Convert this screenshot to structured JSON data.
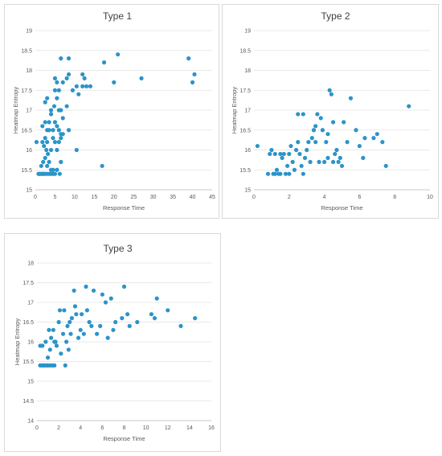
{
  "chart_data": [
    {
      "type": "scatter",
      "title": "Type 1",
      "xlabel": "Response Time",
      "ylabel": "Heatmap Entropy",
      "xlim": [
        0,
        45
      ],
      "ylim": [
        15,
        19
      ],
      "xticks": [
        "0",
        "5",
        "10",
        "15",
        "20",
        "25",
        "30",
        "35",
        "40",
        "45"
      ],
      "yticks": [
        "15",
        "15.5",
        "16",
        "16.5",
        "17",
        "17.5",
        "18",
        "18.5",
        "19"
      ],
      "grid": true,
      "color": "#2b94c9",
      "points": [
        [
          0.3,
          16.2
        ],
        [
          0.8,
          15.4
        ],
        [
          1.0,
          15.4
        ],
        [
          1.2,
          15.4
        ],
        [
          1.5,
          15.4
        ],
        [
          1.8,
          15.4
        ],
        [
          2.0,
          15.4
        ],
        [
          2.2,
          15.4
        ],
        [
          2.5,
          15.4
        ],
        [
          3.0,
          15.4
        ],
        [
          3.5,
          15.4
        ],
        [
          4.0,
          15.4
        ],
        [
          4.5,
          15.4
        ],
        [
          5.0,
          15.4
        ],
        [
          6.2,
          15.4
        ],
        [
          1.5,
          15.6
        ],
        [
          2.0,
          15.7
        ],
        [
          2.5,
          15.8
        ],
        [
          3.0,
          15.6
        ],
        [
          3.2,
          15.9
        ],
        [
          2.8,
          16.0
        ],
        [
          3.5,
          15.7
        ],
        [
          4.0,
          15.5
        ],
        [
          4.5,
          15.5
        ],
        [
          5.5,
          15.5
        ],
        [
          6.5,
          15.7
        ],
        [
          1.8,
          16.2
        ],
        [
          2.2,
          16.1
        ],
        [
          2.5,
          16.3
        ],
        [
          3.0,
          16.2
        ],
        [
          3.5,
          16.5
        ],
        [
          4.0,
          16.0
        ],
        [
          4.5,
          16.3
        ],
        [
          5.0,
          16.2
        ],
        [
          5.5,
          16.0
        ],
        [
          6.0,
          16.2
        ],
        [
          6.5,
          16.3
        ],
        [
          1.8,
          16.6
        ],
        [
          2.5,
          16.7
        ],
        [
          3.0,
          16.5
        ],
        [
          3.5,
          16.7
        ],
        [
          4.0,
          16.9
        ],
        [
          4.5,
          16.5
        ],
        [
          5.0,
          16.7
        ],
        [
          5.5,
          16.6
        ],
        [
          6.0,
          16.5
        ],
        [
          6.5,
          16.4
        ],
        [
          7.0,
          16.4
        ],
        [
          2.5,
          17.2
        ],
        [
          3.0,
          17.3
        ],
        [
          4.0,
          17.0
        ],
        [
          4.8,
          17.1
        ],
        [
          5.0,
          17.5
        ],
        [
          5.5,
          17.3
        ],
        [
          6.0,
          17.0
        ],
        [
          6.5,
          17.0
        ],
        [
          7.0,
          16.8
        ],
        [
          8.0,
          17.1
        ],
        [
          8.5,
          16.5
        ],
        [
          5.0,
          17.8
        ],
        [
          5.5,
          17.7
        ],
        [
          6.0,
          17.5
        ],
        [
          7.0,
          17.7
        ],
        [
          8.0,
          17.8
        ],
        [
          8.5,
          17.9
        ],
        [
          9.5,
          17.5
        ],
        [
          10.5,
          17.6
        ],
        [
          11.0,
          17.4
        ],
        [
          12.0,
          17.6
        ],
        [
          12.5,
          17.8
        ],
        [
          6.5,
          18.3
        ],
        [
          8.5,
          18.3
        ],
        [
          12.0,
          17.9
        ],
        [
          13.0,
          17.6
        ],
        [
          14.0,
          17.6
        ],
        [
          10.5,
          16.0
        ],
        [
          17.0,
          15.6
        ],
        [
          17.5,
          18.2
        ],
        [
          20.0,
          17.7
        ],
        [
          21.0,
          18.4
        ],
        [
          27.0,
          17.8
        ],
        [
          39.0,
          18.3
        ],
        [
          40.0,
          17.7
        ],
        [
          40.5,
          17.9
        ]
      ]
    },
    {
      "type": "scatter",
      "title": "Type 2",
      "xlabel": "Response Time",
      "ylabel": "Heatmap Entropy",
      "xlim": [
        0,
        10
      ],
      "ylim": [
        15,
        19
      ],
      "xticks": [
        "0",
        "2",
        "4",
        "6",
        "8",
        "10"
      ],
      "yticks": [
        "15",
        "15.5",
        "16",
        "16.5",
        "17",
        "17.5",
        "18",
        "18.5",
        "19"
      ],
      "grid": true,
      "color": "#2b94c9",
      "points": [
        [
          0.2,
          16.1
        ],
        [
          0.8,
          15.4
        ],
        [
          0.9,
          15.9
        ],
        [
          1.0,
          16.0
        ],
        [
          1.1,
          15.4
        ],
        [
          1.2,
          15.4
        ],
        [
          1.3,
          15.5
        ],
        [
          1.4,
          15.4
        ],
        [
          1.5,
          15.4
        ],
        [
          1.6,
          15.8
        ],
        [
          1.7,
          15.9
        ],
        [
          1.8,
          15.4
        ],
        [
          1.9,
          15.6
        ],
        [
          2.0,
          15.4
        ],
        [
          2.0,
          15.9
        ],
        [
          2.1,
          16.1
        ],
        [
          2.2,
          15.7
        ],
        [
          2.3,
          15.5
        ],
        [
          2.4,
          16.0
        ],
        [
          2.5,
          16.2
        ],
        [
          2.6,
          15.9
        ],
        [
          2.7,
          15.6
        ],
        [
          2.8,
          15.4
        ],
        [
          2.9,
          15.8
        ],
        [
          3.0,
          16.0
        ],
        [
          3.1,
          16.2
        ],
        [
          3.2,
          15.7
        ],
        [
          3.3,
          16.3
        ],
        [
          3.4,
          16.5
        ],
        [
          3.5,
          16.6
        ],
        [
          3.6,
          16.9
        ],
        [
          3.7,
          15.7
        ],
        [
          3.8,
          16.8
        ],
        [
          3.9,
          16.5
        ],
        [
          4.0,
          15.7
        ],
        [
          4.1,
          16.2
        ],
        [
          4.2,
          16.4
        ],
        [
          4.3,
          17.5
        ],
        [
          4.4,
          17.4
        ],
        [
          4.5,
          16.7
        ],
        [
          4.6,
          15.9
        ],
        [
          4.7,
          16.0
        ],
        [
          4.8,
          15.7
        ],
        [
          4.9,
          15.8
        ],
        [
          5.0,
          15.6
        ],
        [
          5.1,
          16.7
        ],
        [
          5.3,
          16.2
        ],
        [
          5.5,
          17.3
        ],
        [
          5.8,
          16.5
        ],
        [
          6.0,
          16.1
        ],
        [
          6.2,
          15.8
        ],
        [
          6.3,
          16.3
        ],
        [
          6.8,
          16.3
        ],
        [
          7.0,
          16.4
        ],
        [
          7.3,
          16.2
        ],
        [
          7.5,
          15.6
        ],
        [
          8.8,
          17.1
        ],
        [
          1.5,
          15.9
        ],
        [
          2.5,
          16.9
        ],
        [
          2.8,
          16.9
        ],
        [
          1.2,
          15.9
        ],
        [
          4.2,
          15.8
        ],
        [
          4.5,
          15.7
        ],
        [
          3.5,
          16.2
        ]
      ]
    },
    {
      "type": "scatter",
      "title": "Type 3",
      "xlabel": "Response Time",
      "ylabel": "Heatmap Entropy",
      "xlim": [
        0,
        16
      ],
      "ylim": [
        14,
        18
      ],
      "xticks": [
        "0",
        "2",
        "4",
        "6",
        "8",
        "10",
        "12",
        "14",
        "16"
      ],
      "yticks": [
        "14",
        "14.5",
        "15",
        "15.5",
        "16",
        "16.5",
        "17",
        "17.5",
        "18"
      ],
      "grid": true,
      "color": "#2b94c9",
      "points": [
        [
          0.3,
          15.4
        ],
        [
          0.5,
          15.4
        ],
        [
          0.7,
          15.4
        ],
        [
          0.9,
          15.4
        ],
        [
          1.0,
          15.4
        ],
        [
          1.2,
          15.4
        ],
        [
          1.4,
          15.4
        ],
        [
          1.6,
          15.4
        ],
        [
          0.5,
          15.9
        ],
        [
          0.8,
          16.0
        ],
        [
          1.0,
          15.6
        ],
        [
          1.2,
          15.8
        ],
        [
          1.3,
          16.1
        ],
        [
          1.5,
          16.3
        ],
        [
          1.6,
          16.0
        ],
        [
          1.8,
          15.9
        ],
        [
          2.0,
          16.5
        ],
        [
          2.1,
          16.8
        ],
        [
          2.2,
          15.7
        ],
        [
          2.4,
          16.2
        ],
        [
          2.5,
          16.8
        ],
        [
          2.6,
          15.4
        ],
        [
          2.7,
          16.0
        ],
        [
          2.8,
          16.4
        ],
        [
          3.0,
          16.5
        ],
        [
          3.1,
          16.2
        ],
        [
          3.2,
          16.6
        ],
        [
          3.4,
          17.3
        ],
        [
          3.5,
          16.9
        ],
        [
          3.6,
          16.7
        ],
        [
          3.8,
          16.1
        ],
        [
          4.0,
          16.3
        ],
        [
          4.1,
          16.7
        ],
        [
          4.3,
          16.2
        ],
        [
          4.5,
          17.4
        ],
        [
          4.6,
          16.8
        ],
        [
          4.8,
          16.5
        ],
        [
          5.0,
          16.4
        ],
        [
          5.2,
          17.3
        ],
        [
          5.5,
          16.2
        ],
        [
          5.8,
          16.4
        ],
        [
          6.0,
          17.2
        ],
        [
          6.3,
          17.0
        ],
        [
          6.5,
          16.1
        ],
        [
          6.8,
          17.1
        ],
        [
          7.0,
          16.3
        ],
        [
          7.2,
          16.5
        ],
        [
          7.8,
          16.6
        ],
        [
          8.0,
          17.4
        ],
        [
          8.3,
          16.7
        ],
        [
          8.5,
          16.4
        ],
        [
          9.2,
          16.5
        ],
        [
          10.5,
          16.7
        ],
        [
          10.8,
          16.6
        ],
        [
          11.0,
          17.1
        ],
        [
          12.0,
          16.8
        ],
        [
          13.2,
          16.4
        ],
        [
          14.5,
          16.6
        ],
        [
          0.3,
          15.9
        ],
        [
          0.6,
          15.4
        ],
        [
          1.1,
          16.3
        ],
        [
          1.7,
          16.0
        ],
        [
          2.9,
          15.8
        ]
      ]
    }
  ]
}
